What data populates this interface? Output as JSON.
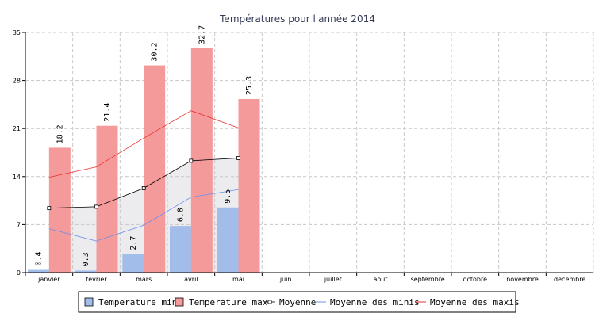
{
  "chart_data": {
    "type": "bar",
    "title": "Températures pour l'année 2014",
    "categories": [
      "janvier",
      "fevrier",
      "mars",
      "avril",
      "mai",
      "juin",
      "juillet",
      "aout",
      "septembre",
      "octobre",
      "novembre",
      "decembre"
    ],
    "ylim": [
      0,
      35
    ],
    "yticks": [
      0,
      7,
      14,
      21,
      28,
      35
    ],
    "grid": true,
    "series": [
      {
        "name": "Temperature min",
        "kind": "bar",
        "color": "#a3bdeb",
        "values": [
          0.4,
          0.3,
          2.7,
          6.8,
          9.5,
          null,
          null,
          null,
          null,
          null,
          null,
          null
        ]
      },
      {
        "name": "Temperature max",
        "kind": "bar",
        "color": "#f59a9a",
        "values": [
          18.2,
          21.4,
          30.2,
          32.7,
          25.3,
          null,
          null,
          null,
          null,
          null,
          null,
          null
        ]
      },
      {
        "name": "Moyenne",
        "kind": "line-area",
        "color": "#000000",
        "values": [
          9.4,
          9.6,
          12.3,
          16.3,
          16.7,
          null,
          null,
          null,
          null,
          null,
          null,
          null
        ]
      },
      {
        "name": "Moyenne des minis",
        "kind": "line",
        "color": "#6f8fe8",
        "values": [
          6.4,
          4.6,
          6.9,
          11.0,
          12.1,
          null,
          null,
          null,
          null,
          null,
          null,
          null
        ]
      },
      {
        "name": "Moyenne des maxis",
        "kind": "line",
        "color": "#e83030",
        "values": [
          13.9,
          15.4,
          19.6,
          23.6,
          21.1,
          null,
          null,
          null,
          null,
          null,
          null,
          null
        ]
      }
    ],
    "legend_position": "bottom"
  }
}
